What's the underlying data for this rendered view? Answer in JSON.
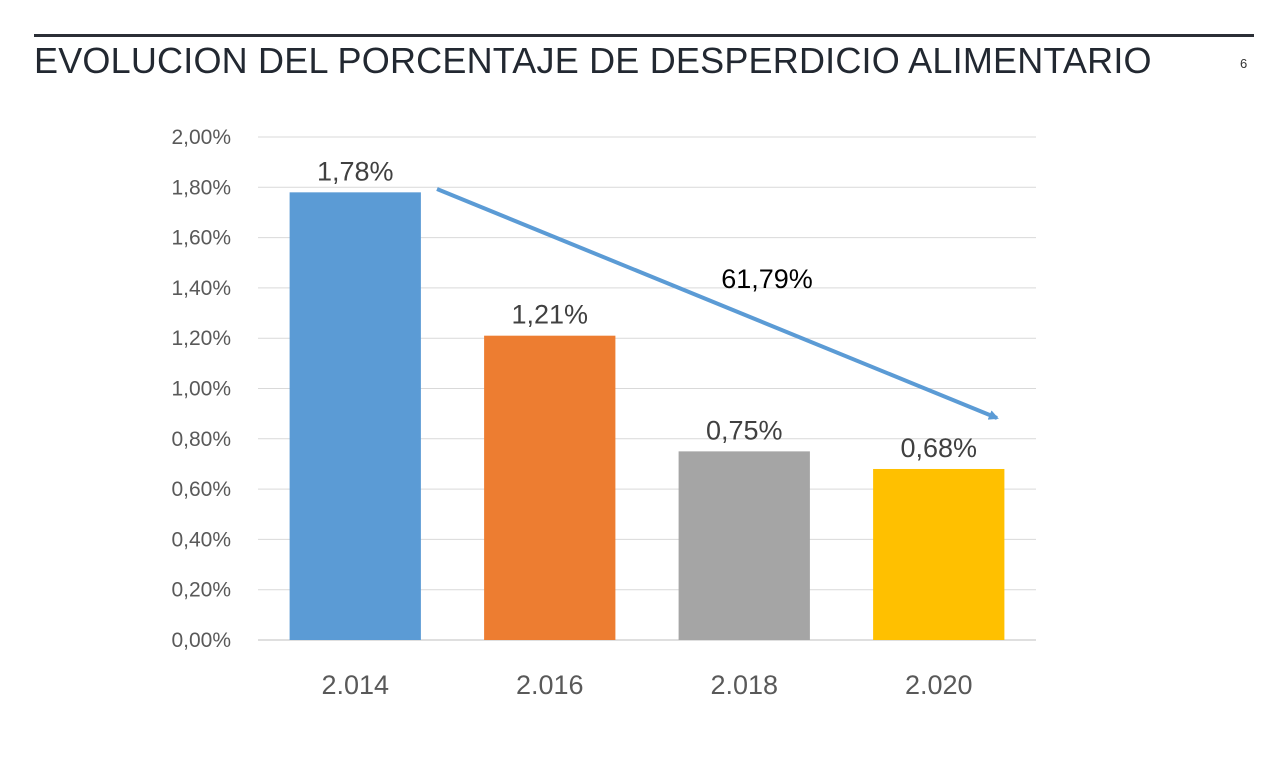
{
  "slide": {
    "title": "EVOLUCION DEL PORCENTAJE DE DESPERDICIO ALIMENTARIO",
    "page_number": "6"
  },
  "chart_data": {
    "type": "bar",
    "categories": [
      "2.014",
      "2.016",
      "2.018",
      "2.020"
    ],
    "values": [
      1.78,
      1.21,
      0.75,
      0.68
    ],
    "data_labels": [
      "1,78%",
      "1,21%",
      "0,75%",
      "0,68%"
    ],
    "colors": [
      "#5b9bd5",
      "#ed7d31",
      "#a5a5a5",
      "#ffc000"
    ],
    "ylim": [
      0,
      2.0
    ],
    "y_ticks": [
      0,
      0.2,
      0.4,
      0.6,
      0.8,
      1.0,
      1.2,
      1.4,
      1.6,
      1.8,
      2.0
    ],
    "y_tick_labels": [
      "0,00%",
      "0,20%",
      "0,40%",
      "0,60%",
      "0,80%",
      "1,00%",
      "1,20%",
      "1,40%",
      "1,60%",
      "1,80%",
      "2,00%"
    ],
    "grid": true,
    "annotation": {
      "text": "61,79%",
      "arrow_color": "#5b9bd5",
      "from_category": "2.014",
      "to_category": "2.020"
    }
  }
}
